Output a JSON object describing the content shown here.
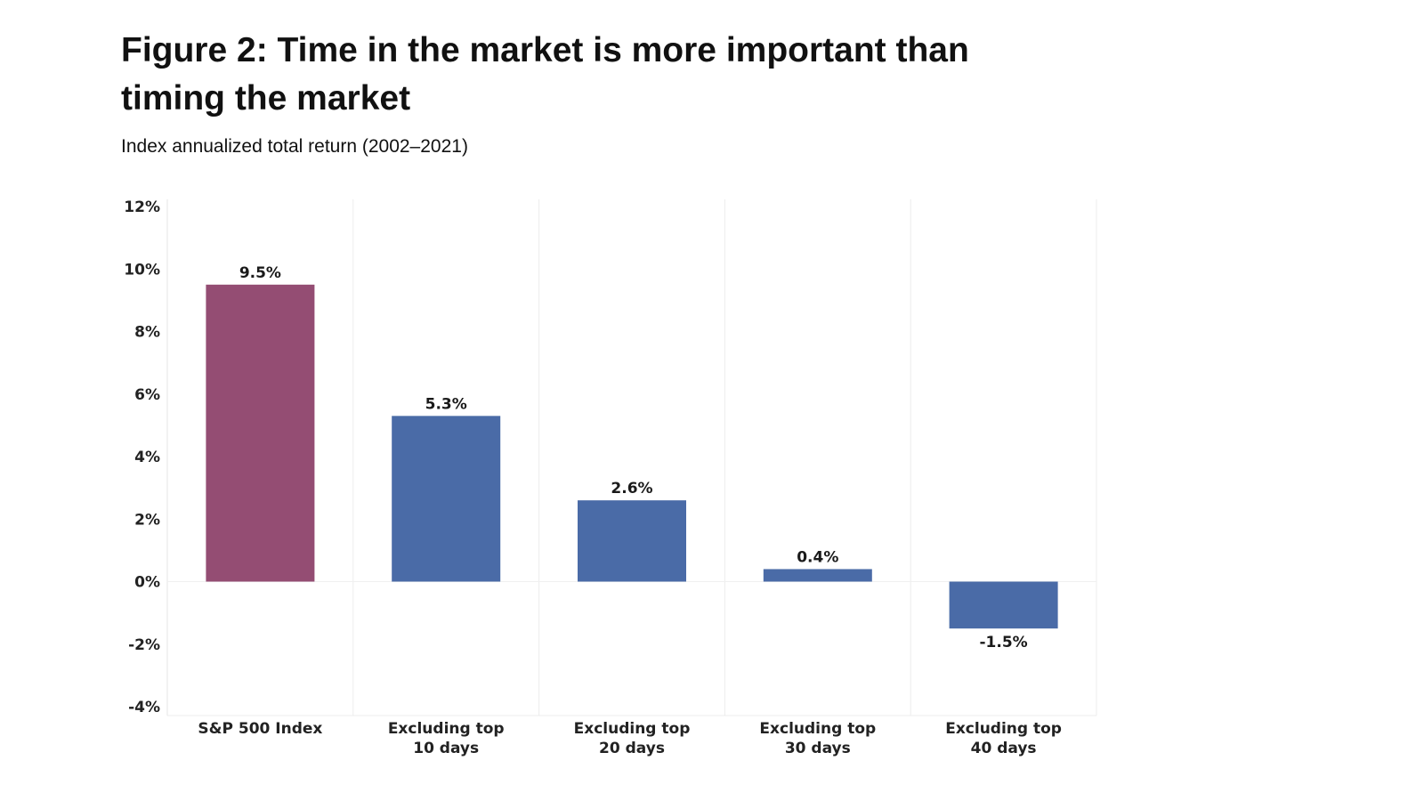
{
  "title_line1": "Figure 2: Time in the market is more important than",
  "title_line2": "timing the market",
  "subtitle": "Index annualized total return (2002–2021)",
  "chart_data": {
    "type": "bar",
    "title": "Figure 2: Time in the market is more important than timing the market",
    "subtitle": "Index annualized total return (2002–2021)",
    "xlabel": "",
    "ylabel": "",
    "categories": [
      [
        "S&P 500 Index"
      ],
      [
        "Excluding top",
        "10 days"
      ],
      [
        "Excluding top",
        "20 days"
      ],
      [
        "Excluding top",
        "30 days"
      ],
      [
        "Excluding top",
        "40 days"
      ]
    ],
    "values": [
      9.5,
      5.3,
      2.6,
      0.4,
      -1.5
    ],
    "value_labels": [
      "9.5%",
      "5.3%",
      "2.6%",
      "0.4%",
      "-1.5%"
    ],
    "bar_colors": [
      "#944d73",
      "#4a6ba7",
      "#4a6ba7",
      "#4a6ba7",
      "#4a6ba7"
    ],
    "y_ticks": [
      12,
      10,
      8,
      6,
      4,
      2,
      0,
      -2,
      -4
    ],
    "y_tick_labels": [
      "12%",
      "10%",
      "8%",
      "6%",
      "4%",
      "2%",
      "0%",
      "-2%",
      "-4%"
    ],
    "ylim": [
      -4,
      12
    ],
    "grid": "vertical separators between categories",
    "legend": "none"
  }
}
